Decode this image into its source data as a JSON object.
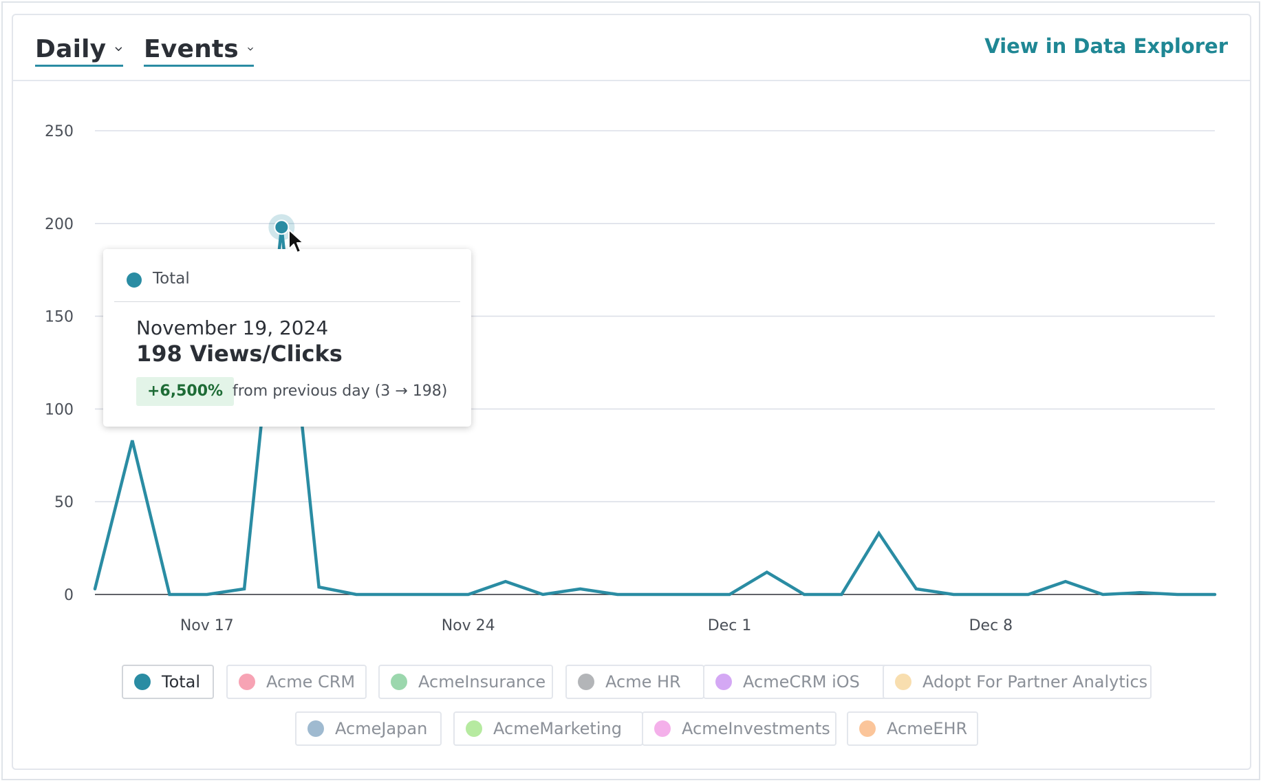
{
  "header": {
    "granularity_label": "Daily",
    "metric_label": "Events",
    "explore_link": "View in Data Explorer"
  },
  "chart_data": {
    "type": "line",
    "title": "",
    "xlabel": "",
    "ylabel": "",
    "ylim": [
      0,
      250
    ],
    "yticks": [
      0,
      50,
      100,
      150,
      200,
      250
    ],
    "xticks": [
      "Nov 17",
      "Nov 24",
      "Dec 1",
      "Dec 8"
    ],
    "grid": true,
    "x": [
      "2024-11-14",
      "2024-11-15",
      "2024-11-16",
      "2024-11-17",
      "2024-11-18",
      "2024-11-19",
      "2024-11-20",
      "2024-11-21",
      "2024-11-22",
      "2024-11-23",
      "2024-11-24",
      "2024-11-25",
      "2024-11-26",
      "2024-11-27",
      "2024-11-28",
      "2024-11-29",
      "2024-11-30",
      "2024-12-01",
      "2024-12-02",
      "2024-12-03",
      "2024-12-04",
      "2024-12-05",
      "2024-12-06",
      "2024-12-07",
      "2024-12-08",
      "2024-12-09",
      "2024-12-10",
      "2024-12-11",
      "2024-12-12",
      "2024-12-13",
      "2024-12-14"
    ],
    "series": [
      {
        "name": "Total",
        "color": "#2a8ca3",
        "values": [
          3,
          83,
          0,
          0,
          3,
          198,
          4,
          0,
          0,
          0,
          0,
          7,
          0,
          3,
          0,
          0,
          0,
          0,
          12,
          0,
          0,
          33,
          3,
          0,
          0,
          0,
          7,
          0,
          1,
          0,
          0
        ]
      }
    ],
    "highlight": {
      "series": "Total",
      "date": "2024-11-19",
      "value": 198
    }
  },
  "tooltip": {
    "series": "Total",
    "date": "November 19, 2024",
    "value": "198 Views/Clicks",
    "change_badge": "+6,500%",
    "change_text": "from previous day (3 → 198)"
  },
  "legend": [
    {
      "label": "Total",
      "color": "#2a8ca3",
      "active": true
    },
    {
      "label": "Acme CRM",
      "color": "#f7a3b4",
      "active": false
    },
    {
      "label": "AcmeInsurance",
      "color": "#9bd7ad",
      "active": false
    },
    {
      "label": "Acme HR",
      "color": "#b3b5b8",
      "active": false
    },
    {
      "label": "AcmeCRM iOS",
      "color": "#d4a8f4",
      "active": false
    },
    {
      "label": "Adopt For Partner Analytics",
      "color": "#f8deaf",
      "active": false
    },
    {
      "label": "AcmeJapan",
      "color": "#9fbad0",
      "active": false
    },
    {
      "label": "AcmeMarketing",
      "color": "#b6eaa0",
      "active": false
    },
    {
      "label": "AcmeInvestments",
      "color": "#f4b0ea",
      "active": false
    },
    {
      "label": "AcmeEHR",
      "color": "#fbc59a",
      "active": false
    }
  ]
}
